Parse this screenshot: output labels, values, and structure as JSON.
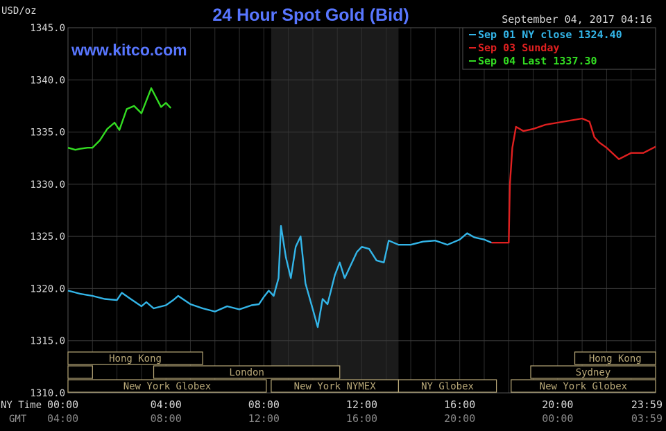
{
  "chart_data": {
    "type": "line",
    "title": "24 Hour Spot Gold (Bid)",
    "ylabel": "USD/oz",
    "watermark": "www.kitco.com",
    "timestamp": "September 04, 2017 04:16",
    "ylim": [
      1310,
      1345
    ],
    "y_ticks": [
      "1345.0",
      "1340.0",
      "1335.0",
      "1330.0",
      "1325.0",
      "1320.0",
      "1315.0",
      "1310.0"
    ],
    "x_range_hours": [
      0,
      24
    ],
    "ny_time_label": "NY Time",
    "gmt_label": "GMT",
    "ny_time_ticks": [
      {
        "hour": 0,
        "label": "00:00"
      },
      {
        "hour": 4,
        "label": "04:00"
      },
      {
        "hour": 8,
        "label": "08:00"
      },
      {
        "hour": 12,
        "label": "12:00"
      },
      {
        "hour": 16,
        "label": "16:00"
      },
      {
        "hour": 20,
        "label": "20:00"
      },
      {
        "hour": 24,
        "label": "23:59"
      }
    ],
    "gmt_ticks": [
      {
        "hour": 0,
        "label": "04:00"
      },
      {
        "hour": 4,
        "label": "08:00"
      },
      {
        "hour": 8,
        "label": "12:00"
      },
      {
        "hour": 12,
        "label": "16:00"
      },
      {
        "hour": 16,
        "label": "20:00"
      },
      {
        "hour": 20,
        "label": "00:00"
      },
      {
        "hour": 24,
        "label": "03:59"
      }
    ],
    "legend": [
      {
        "text": "Sep 01 NY close 1324.40",
        "color": "#33b5e8"
      },
      {
        "text": "Sep 03 Sunday",
        "color": "#e02020"
      },
      {
        "text": "Sep 04 Last 1337.30",
        "color": "#33dd22"
      }
    ],
    "shaded_band_hours": [
      8.3,
      13.5
    ],
    "sessions": [
      {
        "label": "Hong Kong",
        "start": 0,
        "end": 5.5,
        "row": 0
      },
      {
        "label": "Hong Kong",
        "start": 20.7,
        "end": 24,
        "row": 0
      },
      {
        "label": "",
        "start": 0,
        "end": 1,
        "row": 1
      },
      {
        "label": "London",
        "start": 3.5,
        "end": 11.1,
        "row": 1
      },
      {
        "label": "Sydney",
        "start": 18.9,
        "end": 24,
        "row": 1
      },
      {
        "label": "New York Globex",
        "start": 0,
        "end": 8.1,
        "row": 2
      },
      {
        "label": "New York NYMEX",
        "start": 8.3,
        "end": 13.5,
        "row": 2
      },
      {
        "label": "NY Globex",
        "start": 13.5,
        "end": 17.5,
        "row": 2
      },
      {
        "label": "New York Globex",
        "start": 18.1,
        "end": 24,
        "row": 2
      }
    ],
    "series": [
      {
        "name": "Sep 01 NY close 1324.40",
        "color": "#33b5e8",
        "x": [
          0,
          0.5,
          1,
          1.5,
          2,
          2.2,
          2.5,
          3,
          3.2,
          3.5,
          4,
          4.3,
          4.5,
          5,
          5.5,
          6,
          6.5,
          7,
          7.5,
          7.8,
          8,
          8.2,
          8.4,
          8.6,
          8.7,
          8.9,
          9.1,
          9.3,
          9.5,
          9.7,
          10,
          10.2,
          10.4,
          10.6,
          10.9,
          11.1,
          11.3,
          11.5,
          11.8,
          12,
          12.3,
          12.6,
          12.9,
          13.1,
          13.5,
          14,
          14.5,
          15,
          15.5,
          16,
          16.3,
          16.6,
          17,
          17.3
        ],
        "y": [
          1319.8,
          1319.5,
          1319.3,
          1319.0,
          1318.9,
          1319.6,
          1319.1,
          1318.3,
          1318.7,
          1318.1,
          1318.4,
          1318.9,
          1319.3,
          1318.5,
          1318.1,
          1317.8,
          1318.3,
          1318.0,
          1318.4,
          1318.5,
          1319.2,
          1319.8,
          1319.3,
          1321.0,
          1326.0,
          1323.0,
          1321.0,
          1324.0,
          1325.0,
          1320.5,
          1318.0,
          1316.3,
          1319.0,
          1318.5,
          1321.3,
          1322.5,
          1321.0,
          1322.0,
          1323.5,
          1324.0,
          1323.8,
          1322.7,
          1322.5,
          1324.6,
          1324.2,
          1324.2,
          1324.5,
          1324.6,
          1324.2,
          1324.7,
          1325.3,
          1324.9,
          1324.7,
          1324.4
        ]
      },
      {
        "name": "Sep 03 Sunday",
        "color": "#e02020",
        "x": [
          17.3,
          18.0,
          18.05,
          18.15,
          18.3,
          18.6,
          19,
          19.5,
          20,
          20.5,
          21,
          21.3,
          21.5,
          21.7,
          22,
          22.5,
          23,
          23.5,
          24
        ],
        "y": [
          1324.4,
          1324.4,
          1330.0,
          1333.5,
          1335.5,
          1335.1,
          1335.3,
          1335.7,
          1335.9,
          1336.1,
          1336.3,
          1336.0,
          1334.5,
          1334.0,
          1333.5,
          1332.4,
          1333.0,
          1333.0,
          1333.6
        ]
      },
      {
        "name": "Sep 04 Last 1337.30",
        "color": "#33dd22",
        "x": [
          0,
          0.3,
          0.5,
          0.8,
          1,
          1.3,
          1.6,
          1.9,
          2.1,
          2.4,
          2.7,
          3.0,
          3.2,
          3.4,
          3.6,
          3.8,
          4.0,
          4.2
        ],
        "y": [
          1333.5,
          1333.3,
          1333.4,
          1333.5,
          1333.5,
          1334.2,
          1335.3,
          1335.9,
          1335.2,
          1337.2,
          1337.5,
          1336.8,
          1338.0,
          1339.2,
          1338.3,
          1337.4,
          1337.8,
          1337.3
        ]
      }
    ]
  }
}
